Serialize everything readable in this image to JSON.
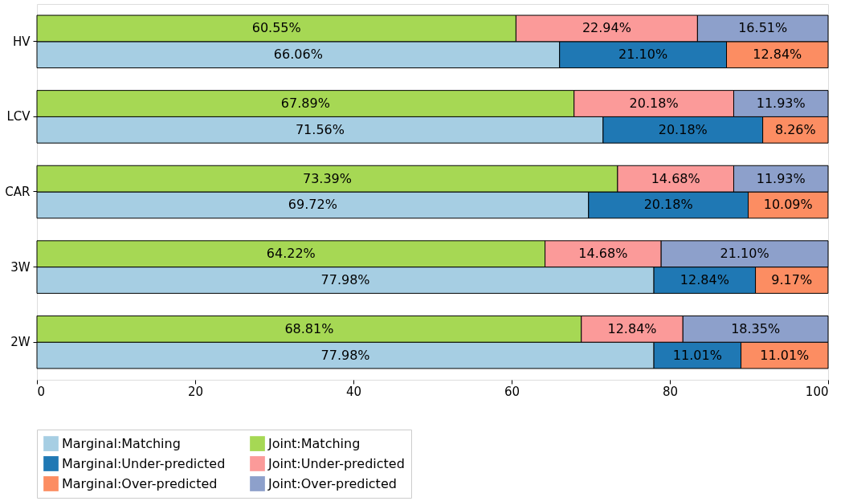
{
  "chart_data": {
    "type": "bar",
    "orientation": "horizontal",
    "categories": [
      "HV",
      "LCV",
      "CAR",
      "3W",
      "2W"
    ],
    "series": [
      {
        "name": "Marginal:Matching",
        "color": "#a6cee3",
        "values": [
          66.06,
          71.56,
          69.72,
          77.98,
          77.98
        ],
        "base": [
          0,
          0,
          0,
          0,
          0
        ],
        "value_labels": [
          "66.06%",
          "71.56%",
          "69.72%",
          "77.98%",
          "77.98%"
        ]
      },
      {
        "name": "Marginal:Under-predicted",
        "color": "#1f78b4",
        "values": [
          21.1,
          20.18,
          20.18,
          12.84,
          11.01
        ],
        "base": [
          66.06,
          71.56,
          69.72,
          77.98,
          77.98
        ],
        "value_labels": [
          "21.10%",
          "20.18%",
          "20.18%",
          "12.84%",
          "11.01%"
        ]
      },
      {
        "name": "Marginal:Over-predicted",
        "color": "#fc8d62",
        "values": [
          12.84,
          8.26,
          10.09,
          9.17,
          11.01
        ],
        "base": [
          87.16,
          91.74,
          89.9,
          90.82,
          88.99
        ],
        "value_labels": [
          "12.84%",
          "8.26%",
          "10.09%",
          "9.17%",
          "11.01%"
        ]
      },
      {
        "name": "Joint:Matching",
        "color": "#a6d854",
        "values": [
          60.55,
          67.89,
          73.39,
          64.22,
          68.81
        ],
        "base": [
          0,
          0,
          0,
          0,
          0
        ],
        "value_labels": [
          "60.55%",
          "67.89%",
          "73.39%",
          "64.22%",
          "68.81%"
        ]
      },
      {
        "name": "Joint:Under-predicted",
        "color": "#fb9a99",
        "values": [
          22.94,
          20.18,
          14.68,
          14.68,
          12.84
        ],
        "base": [
          60.55,
          67.89,
          73.39,
          64.22,
          68.81
        ],
        "value_labels": [
          "22.94%",
          "20.18%",
          "14.68%",
          "14.68%",
          "12.84%"
        ]
      },
      {
        "name": "Joint:Over-predicted",
        "color": "#8da0cb",
        "values": [
          16.51,
          11.93,
          11.93,
          21.1,
          18.35
        ],
        "base": [
          83.49,
          88.07,
          88.07,
          78.9,
          81.65
        ],
        "value_labels": [
          "16.51%",
          "11.93%",
          "11.93%",
          "21.10%",
          "18.35%"
        ]
      }
    ],
    "xlim": [
      0,
      100
    ],
    "xticks": [
      0,
      20,
      40,
      60,
      80,
      100
    ],
    "grid": false,
    "legend": "bottom"
  }
}
